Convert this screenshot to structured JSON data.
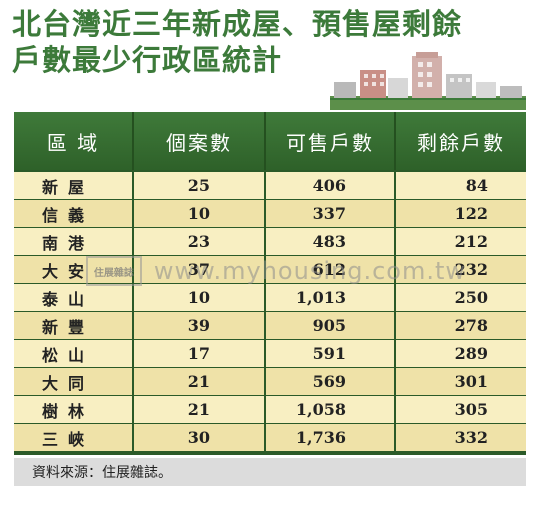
{
  "title": {
    "line1": "北台灣近三年新成屋、預售屋剩餘",
    "line2": "戶數最少行政區統計"
  },
  "table": {
    "headers": [
      "區 域",
      "個案數",
      "可售戶數",
      "剩餘戶數"
    ],
    "rows": [
      {
        "district": "新屋",
        "cases": "25",
        "available": "406",
        "remaining": "84"
      },
      {
        "district": "信義",
        "cases": "10",
        "available": "337",
        "remaining": "122"
      },
      {
        "district": "南港",
        "cases": "23",
        "available": "483",
        "remaining": "212"
      },
      {
        "district": "大安",
        "cases": "37",
        "available": "612",
        "remaining": "232"
      },
      {
        "district": "泰山",
        "cases": "10",
        "available": "1,013",
        "remaining": "250"
      },
      {
        "district": "新豐",
        "cases": "39",
        "available": "905",
        "remaining": "278"
      },
      {
        "district": "松山",
        "cases": "17",
        "available": "591",
        "remaining": "289"
      },
      {
        "district": "大同",
        "cases": "21",
        "available": "569",
        "remaining": "301"
      },
      {
        "district": "樹林",
        "cases": "21",
        "available": "1,058",
        "remaining": "305"
      },
      {
        "district": "三峽",
        "cases": "30",
        "available": "1,736",
        "remaining": "332"
      }
    ]
  },
  "source": "資料來源：住展雜誌。",
  "watermark": {
    "logo": "住展雜誌",
    "url": "www.myhousing.com.tw"
  },
  "colors": {
    "title": "#3c7a3a",
    "header": "#3f7a3a",
    "row_light": "#f8efc2",
    "row_dark": "#efe2a8"
  }
}
